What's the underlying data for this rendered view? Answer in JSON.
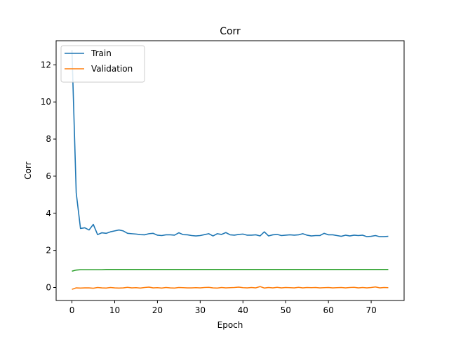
{
  "chart_data": {
    "type": "line",
    "title": "Corr",
    "xlabel": "Epoch",
    "ylabel": "Corr",
    "xlim": [
      -3.7,
      77.7
    ],
    "ylim": [
      -0.7,
      13.3
    ],
    "xticks": [
      0,
      10,
      20,
      30,
      40,
      50,
      60,
      70
    ],
    "yticks": [
      0,
      2,
      4,
      6,
      8,
      10,
      12
    ],
    "grid": false,
    "legend_position": "upper-left",
    "x": [
      0,
      1,
      2,
      3,
      4,
      5,
      6,
      7,
      8,
      9,
      10,
      11,
      12,
      13,
      14,
      15,
      16,
      17,
      18,
      19,
      20,
      21,
      22,
      23,
      24,
      25,
      26,
      27,
      28,
      29,
      30,
      31,
      32,
      33,
      34,
      35,
      36,
      37,
      38,
      39,
      40,
      41,
      42,
      43,
      44,
      45,
      46,
      47,
      48,
      49,
      50,
      51,
      52,
      53,
      54,
      55,
      56,
      57,
      58,
      59,
      60,
      61,
      62,
      63,
      64,
      65,
      66,
      67,
      68,
      69,
      70,
      71,
      72,
      73,
      74
    ],
    "series": [
      {
        "name": "Train",
        "color": "#1f77b4",
        "in_legend": true,
        "values": [
          12.8,
          5.1,
          3.18,
          3.22,
          3.1,
          3.4,
          2.85,
          2.95,
          2.92,
          3.0,
          3.05,
          3.1,
          3.05,
          2.92,
          2.9,
          2.88,
          2.85,
          2.84,
          2.9,
          2.92,
          2.82,
          2.8,
          2.84,
          2.84,
          2.82,
          2.95,
          2.85,
          2.84,
          2.8,
          2.78,
          2.8,
          2.85,
          2.9,
          2.78,
          2.9,
          2.86,
          2.96,
          2.84,
          2.82,
          2.86,
          2.88,
          2.82,
          2.82,
          2.84,
          2.78,
          3.0,
          2.78,
          2.84,
          2.86,
          2.8,
          2.82,
          2.84,
          2.82,
          2.84,
          2.9,
          2.82,
          2.78,
          2.8,
          2.8,
          2.92,
          2.84,
          2.84,
          2.8,
          2.76,
          2.82,
          2.78,
          2.82,
          2.8,
          2.82,
          2.74,
          2.76,
          2.8,
          2.74,
          2.74,
          2.76
        ]
      },
      {
        "name": "Validation",
        "color": "#ff7f0e",
        "in_legend": true,
        "values": [
          -0.1,
          -0.02,
          -0.03,
          -0.02,
          -0.02,
          -0.04,
          0.0,
          -0.02,
          -0.03,
          0.0,
          -0.02,
          -0.03,
          -0.02,
          0.01,
          -0.02,
          -0.01,
          -0.03,
          0.0,
          0.02,
          -0.02,
          -0.01,
          -0.03,
          0.0,
          -0.02,
          -0.03,
          0.0,
          -0.01,
          -0.02,
          -0.02,
          -0.01,
          -0.02,
          0.0,
          0.01,
          -0.02,
          -0.03,
          0.0,
          -0.02,
          -0.01,
          0.0,
          0.02,
          -0.01,
          -0.02,
          0.0,
          -0.02,
          0.05,
          -0.03,
          0.0,
          -0.02,
          0.01,
          -0.02,
          0.0,
          -0.01,
          -0.02,
          0.01,
          -0.02,
          0.0,
          -0.01,
          0.0,
          -0.02,
          -0.01,
          0.0,
          -0.02,
          -0.01,
          0.0,
          -0.02,
          0.0,
          0.01,
          -0.02,
          0.0,
          -0.02,
          0.0,
          0.03,
          -0.02,
          0.0,
          -0.01
        ]
      },
      {
        "name": "",
        "color": "#2ca02c",
        "in_legend": false,
        "values": [
          0.88,
          0.94,
          0.96,
          0.96,
          0.96,
          0.96,
          0.96,
          0.96,
          0.97,
          0.97,
          0.97,
          0.97,
          0.97,
          0.97,
          0.97,
          0.97,
          0.97,
          0.97,
          0.97,
          0.97,
          0.97,
          0.97,
          0.97,
          0.97,
          0.97,
          0.97,
          0.97,
          0.97,
          0.97,
          0.97,
          0.97,
          0.97,
          0.97,
          0.97,
          0.97,
          0.97,
          0.97,
          0.97,
          0.97,
          0.97,
          0.97,
          0.97,
          0.97,
          0.97,
          0.97,
          0.97,
          0.97,
          0.97,
          0.97,
          0.97,
          0.97,
          0.97,
          0.97,
          0.97,
          0.97,
          0.97,
          0.97,
          0.97,
          0.97,
          0.97,
          0.97,
          0.97,
          0.97,
          0.97,
          0.97,
          0.97,
          0.97,
          0.97,
          0.97,
          0.97,
          0.97,
          0.97,
          0.97,
          0.97,
          0.97
        ]
      }
    ]
  }
}
